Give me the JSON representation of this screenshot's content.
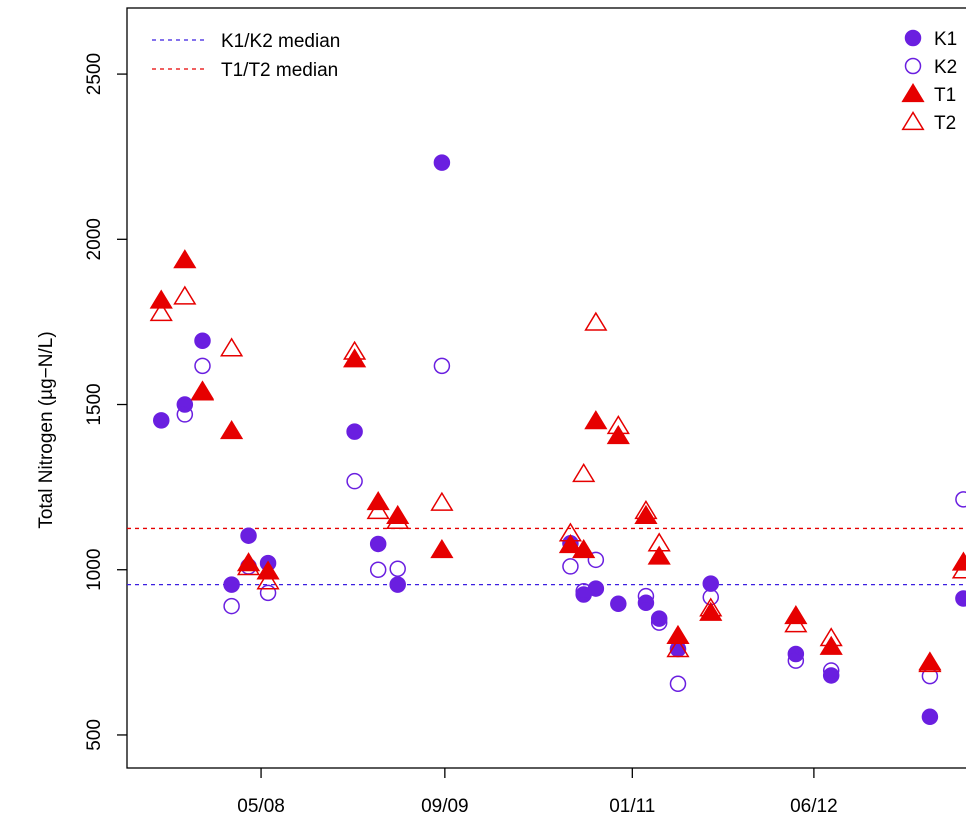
{
  "chart_data": {
    "type": "scatter",
    "title": "",
    "xlabel": "",
    "ylabel": "Total Nitrogen (µg−N/L)",
    "xlim": [
      -200,
      2078
    ],
    "ylim": [
      400,
      2700
    ],
    "x_ticks": [
      {
        "x": 164,
        "label": "05/08"
      },
      {
        "x": 663,
        "label": "09/09"
      },
      {
        "x": 1172,
        "label": "01/11"
      },
      {
        "x": 1665,
        "label": "06/12"
      }
    ],
    "y_ticks": [
      500,
      1000,
      1500,
      2000,
      2500
    ],
    "reference_lines": [
      {
        "name": "K1/K2 median",
        "value": 955,
        "color": "#3b1fe0"
      },
      {
        "name": "T1/T2 median",
        "value": 1125,
        "color": "#e60000"
      }
    ],
    "legend_left": [
      {
        "label": "K1/K2 median",
        "color": "#3b1fe0"
      },
      {
        "label": "T1/T2 median",
        "color": "#e60000"
      }
    ],
    "legend_right": [
      {
        "label": "K1",
        "series": "K1"
      },
      {
        "label": "K2",
        "series": "K2"
      },
      {
        "label": "T1",
        "series": "T1"
      },
      {
        "label": "T2",
        "series": "T2"
      }
    ],
    "series": [
      {
        "name": "K1",
        "marker": "circle-filled",
        "color": "#6a1fe0",
        "points": [
          [
            -107,
            1452
          ],
          [
            -43,
            1500
          ],
          [
            5,
            1693
          ],
          [
            84,
            955
          ],
          [
            130,
            1103
          ],
          [
            183,
            1020
          ],
          [
            418,
            1418
          ],
          [
            482,
            1078
          ],
          [
            535,
            955
          ],
          [
            655,
            2232
          ],
          [
            1004,
            1080
          ],
          [
            1040,
            925
          ],
          [
            1073,
            943
          ],
          [
            1134,
            897
          ],
          [
            1209,
            900
          ],
          [
            1245,
            852
          ],
          [
            1296,
            760
          ],
          [
            1385,
            958
          ],
          [
            1616,
            745
          ],
          [
            1712,
            680
          ],
          [
            1980,
            555
          ],
          [
            2071,
            913
          ]
        ]
      },
      {
        "name": "K2",
        "marker": "circle-open",
        "color": "#6a1fe0",
        "points": [
          [
            -43,
            1470
          ],
          [
            5,
            1617
          ],
          [
            84,
            890
          ],
          [
            130,
            1010
          ],
          [
            183,
            930
          ],
          [
            418,
            1268
          ],
          [
            482,
            1000
          ],
          [
            535,
            1003
          ],
          [
            655,
            1617
          ],
          [
            1004,
            1010
          ],
          [
            1040,
            935
          ],
          [
            1073,
            1030
          ],
          [
            1209,
            920
          ],
          [
            1245,
            840
          ],
          [
            1296,
            655
          ],
          [
            1385,
            917
          ],
          [
            1616,
            725
          ],
          [
            1712,
            695
          ],
          [
            1980,
            678
          ],
          [
            2071,
            1213
          ]
        ]
      },
      {
        "name": "T1",
        "marker": "triangle-filled",
        "color": "#e60000",
        "points": [
          [
            -107,
            1815
          ],
          [
            -43,
            1937
          ],
          [
            5,
            1537
          ],
          [
            84,
            1420
          ],
          [
            130,
            1020
          ],
          [
            183,
            995
          ],
          [
            418,
            1637
          ],
          [
            482,
            1205
          ],
          [
            535,
            1163
          ],
          [
            655,
            1060
          ],
          [
            1004,
            1075
          ],
          [
            1040,
            1060
          ],
          [
            1073,
            1450
          ],
          [
            1134,
            1405
          ],
          [
            1209,
            1163
          ],
          [
            1245,
            1040
          ],
          [
            1296,
            800
          ],
          [
            1385,
            870
          ],
          [
            1616,
            860
          ],
          [
            1712,
            767
          ],
          [
            1980,
            720
          ],
          [
            2071,
            1022
          ]
        ]
      },
      {
        "name": "T2",
        "marker": "triangle-open",
        "color": "#e60000",
        "points": [
          [
            -107,
            1777
          ],
          [
            -43,
            1827
          ],
          [
            5,
            1540
          ],
          [
            84,
            1670
          ],
          [
            130,
            1008
          ],
          [
            183,
            965
          ],
          [
            418,
            1660
          ],
          [
            482,
            1178
          ],
          [
            535,
            1148
          ],
          [
            655,
            1203
          ],
          [
            1004,
            1110
          ],
          [
            1040,
            1290
          ],
          [
            1073,
            1748
          ],
          [
            1134,
            1435
          ],
          [
            1209,
            1178
          ],
          [
            1245,
            1080
          ],
          [
            1296,
            760
          ],
          [
            1385,
            883
          ],
          [
            1616,
            835
          ],
          [
            1712,
            793
          ],
          [
            1980,
            715
          ],
          [
            2071,
            998
          ]
        ]
      }
    ]
  }
}
